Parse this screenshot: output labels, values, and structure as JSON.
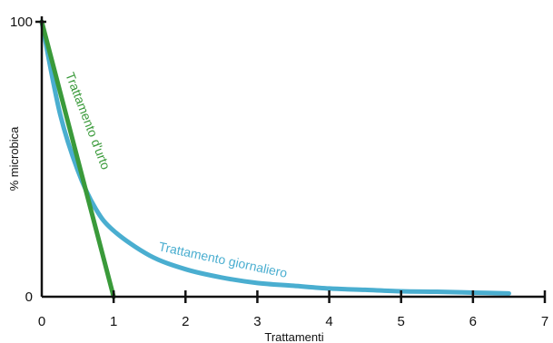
{
  "chart_data": {
    "type": "line",
    "title": "",
    "xlabel": "Trattamenti",
    "ylabel": "% microbica",
    "xlim": [
      0,
      7
    ],
    "ylim": [
      0,
      100
    ],
    "x_ticks": [
      "0",
      "1",
      "2",
      "3",
      "4",
      "5",
      "6",
      "7"
    ],
    "y_ticks": [
      "0",
      "100"
    ],
    "grid": false,
    "series": [
      {
        "name": "Trattamento d'urto",
        "color": "#3a9a3a",
        "x": [
          0,
          1
        ],
        "y": [
          100,
          0
        ]
      },
      {
        "name": "Trattamento giornaliero",
        "color": "#4aaed0",
        "x": [
          0,
          0.25,
          0.5,
          0.75,
          1,
          1.5,
          2,
          2.5,
          3,
          3.5,
          4,
          4.5,
          5,
          5.5,
          6,
          6.5
        ],
        "y": [
          100,
          67,
          46,
          32,
          24,
          15,
          10,
          7,
          5,
          4,
          3,
          2.5,
          2,
          1.8,
          1.5,
          1.2
        ]
      }
    ]
  }
}
